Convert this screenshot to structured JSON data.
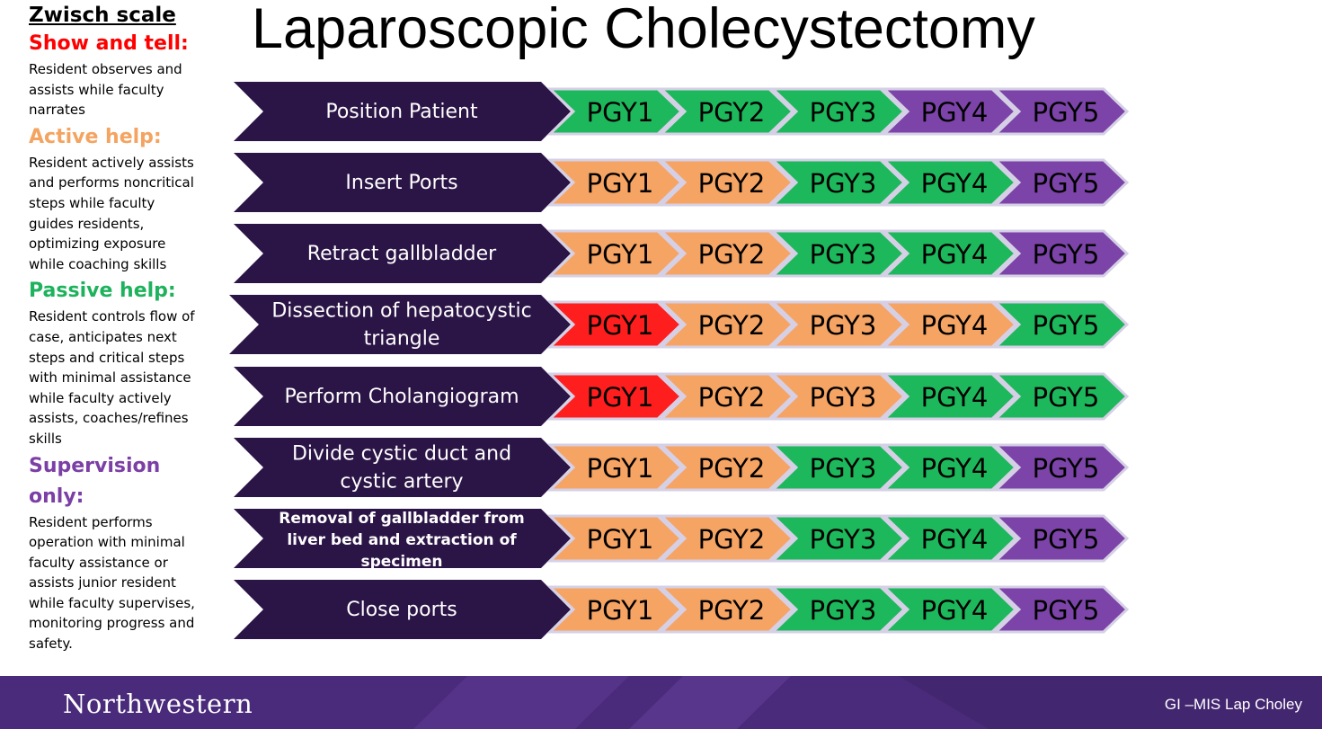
{
  "title": "Laparoscopic Cholecystectomy",
  "legend": {
    "scale_title": "Zwisch scale",
    "levels": [
      {
        "key": "show",
        "title": "Show and tell:",
        "color": "#ff0000",
        "desc": "Resident observes and assists while faculty narrates"
      },
      {
        "key": "active",
        "title": "Active help:",
        "color": "#f4a460",
        "desc": "Resident actively assists and performs noncritical steps while faculty guides residents, optimizing exposure while coaching skills"
      },
      {
        "key": "passive",
        "title": "Passive help:",
        "color": "#1eb25c",
        "desc": "Resident controls flow of case, anticipates next steps and critical steps with minimal assistance while faculty actively assists, coaches/refines skills"
      },
      {
        "key": "supervision",
        "title": "Supervision only:",
        "color": "#7b3fa6",
        "desc": "Resident performs operation with minimal faculty assistance or assists junior resident while faculty supervises, monitoring progress and safety."
      }
    ]
  },
  "pgy_labels": [
    "PGY1",
    "PGY2",
    "PGY3",
    "PGY4",
    "PGY5"
  ],
  "level_colors": {
    "show": "#ff1e1e",
    "active": "#f6a464",
    "passive": "#1eb85c",
    "supervision": "#7c44a8"
  },
  "steps": [
    {
      "label": "Position Patient",
      "levels": [
        "passive",
        "passive",
        "passive",
        "supervision",
        "supervision"
      ]
    },
    {
      "label": "Insert Ports",
      "levels": [
        "active",
        "active",
        "passive",
        "passive",
        "supervision"
      ]
    },
    {
      "label": "Retract gallbladder",
      "levels": [
        "active",
        "active",
        "passive",
        "passive",
        "supervision"
      ]
    },
    {
      "label": "Dissection of hepatocystic triangle",
      "levels": [
        "show",
        "active",
        "active",
        "active",
        "passive"
      ]
    },
    {
      "label": "Perform Cholangiogram",
      "levels": [
        "show",
        "active",
        "active",
        "passive",
        "passive"
      ]
    },
    {
      "label": "Divide cystic duct and cystic artery",
      "levels": [
        "active",
        "active",
        "passive",
        "passive",
        "supervision"
      ]
    },
    {
      "label": "Removal of gallbladder from liver bed and extraction of specimen",
      "levels": [
        "active",
        "active",
        "passive",
        "passive",
        "supervision"
      ]
    },
    {
      "label": "Close ports",
      "levels": [
        "active",
        "active",
        "passive",
        "passive",
        "supervision"
      ]
    }
  ],
  "footer": {
    "brand": "Northwestern",
    "caption": "GI –MIS Lap Choley"
  }
}
